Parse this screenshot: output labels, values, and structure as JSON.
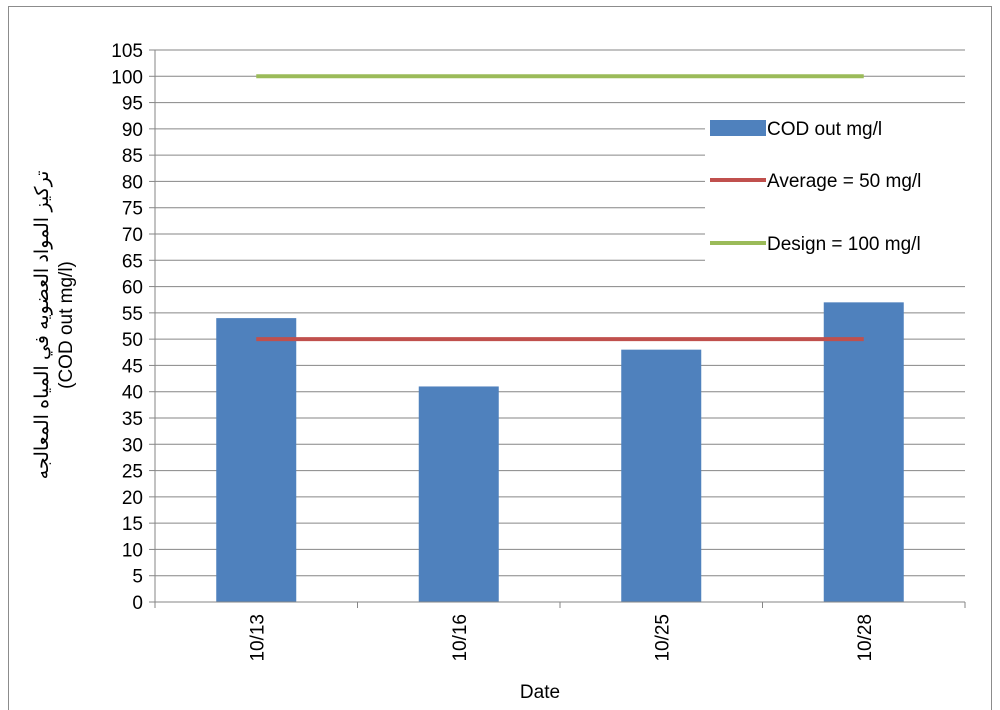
{
  "chart_data": {
    "type": "bar",
    "categories": [
      "10/13",
      "10/16",
      "10/25",
      "10/28"
    ],
    "series": [
      {
        "name": "COD out mg/l",
        "type": "bar",
        "color": "#4f81bd",
        "values": [
          54,
          41,
          48,
          57
        ]
      },
      {
        "name": "Average = 50 mg/l",
        "type": "line",
        "color": "#c0504d",
        "values": [
          50,
          50,
          50,
          50
        ]
      },
      {
        "name": "Design = 100 mg/l",
        "type": "line",
        "color": "#9bbb59",
        "values": [
          100,
          100,
          100,
          100
        ]
      }
    ],
    "xlabel": "Date",
    "ylabel_line1": "تركيز المواد العضويه في المياه المعالجه",
    "ylabel_line2": "(COD out mg/l)",
    "ylim": [
      0,
      105
    ],
    "ytick_step": 5,
    "grid": true,
    "legend": "right"
  }
}
